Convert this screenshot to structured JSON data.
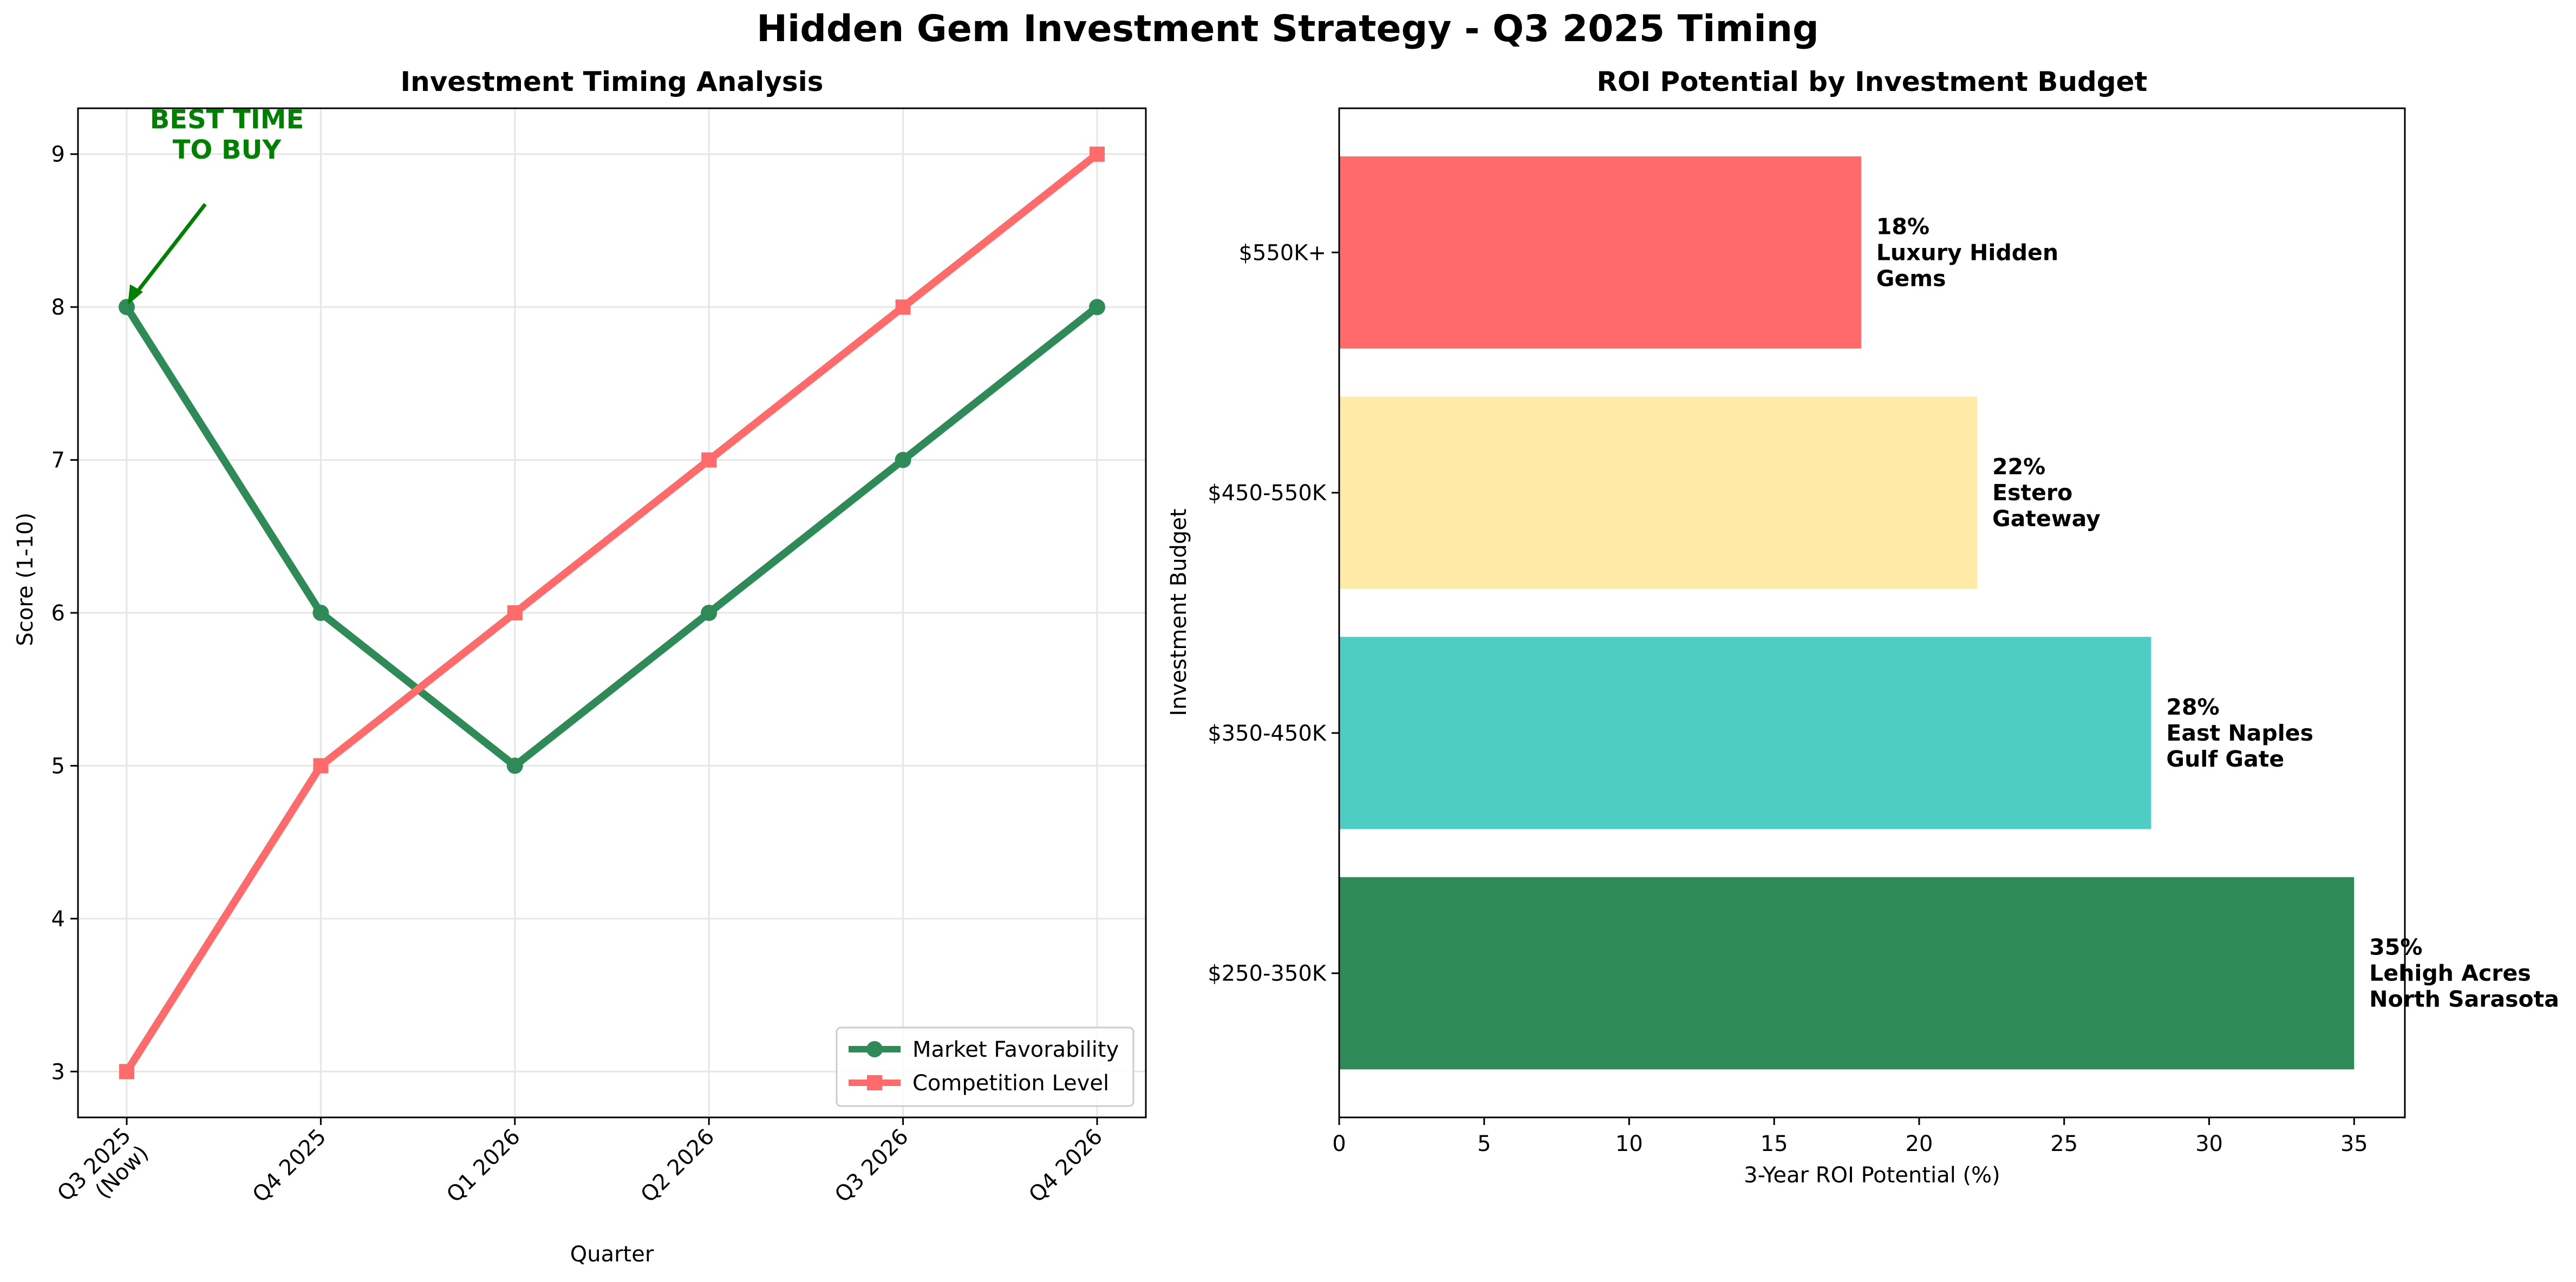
{
  "figure_title": "Hidden Gem Investment Strategy - Q3 2025 Timing",
  "chart_data": [
    {
      "type": "line",
      "title": "Investment Timing Analysis",
      "xlabel": "Quarter",
      "ylabel": "Score (1-10)",
      "categories": [
        "Q3 2025\n(Now)",
        "Q4 2025",
        "Q1 2026",
        "Q2 2026",
        "Q3 2026",
        "Q4 2026"
      ],
      "series": [
        {
          "name": "Market Favorability",
          "values": [
            8,
            6,
            5,
            6,
            7,
            8
          ],
          "color": "#2E8B57",
          "marker": "circle"
        },
        {
          "name": "Competition Level",
          "values": [
            3,
            5,
            6,
            7,
            8,
            9
          ],
          "color": "#FF6B6B",
          "marker": "square"
        }
      ],
      "ylim": [
        2.7,
        9.3
      ],
      "yticks": [
        3,
        4,
        5,
        6,
        7,
        8,
        9
      ],
      "grid": true,
      "legend": "lower-right",
      "annotation": {
        "text": "BEST TIME\nTO BUY",
        "target_category": 0,
        "target_value": 8,
        "color": "#008000"
      }
    },
    {
      "type": "bar",
      "orientation": "horizontal",
      "title": "ROI Potential by Investment Budget",
      "xlabel": "3-Year ROI Potential (%)",
      "ylabel": "Investment Budget",
      "categories": [
        "$250-350K",
        "$350-450K",
        "$450-550K",
        "$550K+"
      ],
      "values": [
        35,
        28,
        22,
        18
      ],
      "colors": [
        "#2E8B57",
        "#4ECDC4",
        "#FFEAA7",
        "#FF6B6B"
      ],
      "data_labels": [
        "35%\nLehigh Acres\nNorth Sarasota",
        "28%\nEast Naples\nGulf Gate",
        "22%\nEstero\nGateway",
        "18%\nLuxury Hidden\nGems"
      ],
      "xlim": [
        0,
        36.75
      ],
      "xticks": [
        0,
        5,
        10,
        15,
        20,
        25,
        30,
        35
      ],
      "grid": false
    }
  ]
}
